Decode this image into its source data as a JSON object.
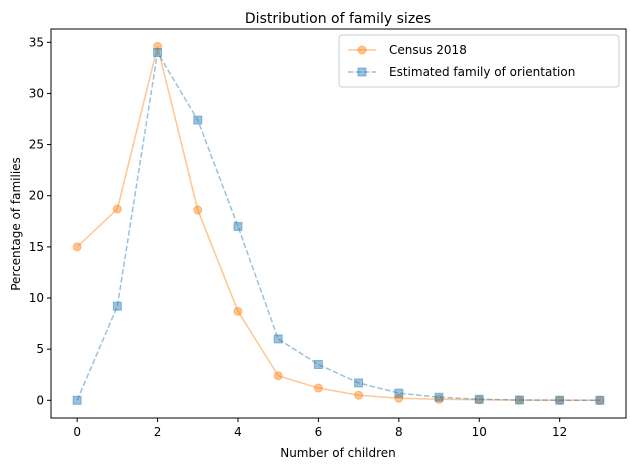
{
  "chart_data": {
    "type": "line",
    "title": "Distribution of family sizes",
    "xlabel": "Number of children",
    "ylabel": "Percentage of families",
    "xlim": [
      -0.65,
      13.65
    ],
    "ylim": [
      -1.73,
      36.3
    ],
    "xticks": [
      0,
      2,
      4,
      6,
      8,
      10,
      12
    ],
    "yticks": [
      0,
      5,
      10,
      15,
      20,
      25,
      30,
      35
    ],
    "grid": false,
    "legend_position": "top-right",
    "series": [
      {
        "name": "Census 2018",
        "color": "#ff7f0e",
        "marker": "circle",
        "linestyle": "solid",
        "x": [
          0,
          1,
          2,
          3,
          4,
          5,
          6,
          7,
          8,
          9,
          10,
          11,
          12,
          13
        ],
        "y": [
          15.0,
          18.7,
          34.6,
          18.6,
          8.7,
          2.4,
          1.2,
          0.5,
          0.2,
          0.1,
          0.05,
          0.02,
          0.01,
          0.0
        ]
      },
      {
        "name": "Estimated family of orientation",
        "color": "#1f77b4",
        "marker": "square",
        "linestyle": "dashed",
        "x": [
          0,
          1,
          2,
          3,
          4,
          5,
          6,
          7,
          8,
          9,
          10,
          11,
          12,
          13
        ],
        "y": [
          0.0,
          9.2,
          34.0,
          27.4,
          17.0,
          6.0,
          3.5,
          1.7,
          0.7,
          0.3,
          0.1,
          0.03,
          0.01,
          0.0
        ]
      }
    ]
  }
}
